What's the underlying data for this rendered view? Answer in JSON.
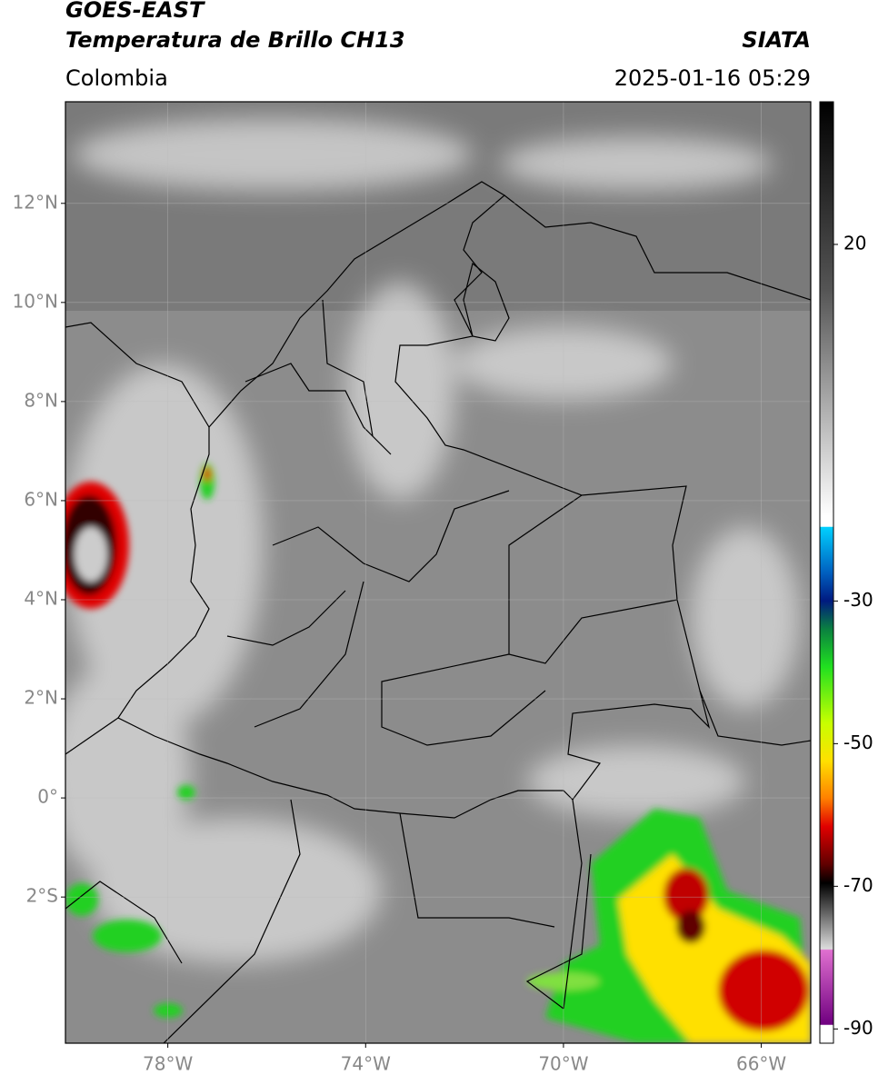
{
  "header": {
    "title": "GOES-EAST",
    "subtitle": "Temperatura de Brillo CH13",
    "source": "SIATA",
    "region": "Colombia",
    "datetime": "2025-01-16 05:29"
  },
  "map": {
    "latlim": [
      -4.95,
      14.05
    ],
    "lonlim": [
      -80.07,
      -65.0
    ],
    "latticks": [
      {
        "value": 12,
        "label": "12°N"
      },
      {
        "value": 10,
        "label": "10°N"
      },
      {
        "value": 8,
        "label": "8°N"
      },
      {
        "value": 6,
        "label": "6°N"
      },
      {
        "value": 4,
        "label": "4°N"
      },
      {
        "value": 2,
        "label": "2°N"
      },
      {
        "value": 0,
        "label": "0°"
      },
      {
        "value": -2,
        "label": "2°S"
      }
    ],
    "lonticks": [
      {
        "value": -78,
        "label": "78°W"
      },
      {
        "value": -74,
        "label": "74°W"
      },
      {
        "value": -70,
        "label": "70°W"
      },
      {
        "value": -66,
        "label": "66°W"
      }
    ],
    "grid": true
  },
  "colorbar": {
    "lim": [
      -92,
      40
    ],
    "ticks": [
      20,
      -30,
      -50,
      -70,
      -90
    ]
  }
}
